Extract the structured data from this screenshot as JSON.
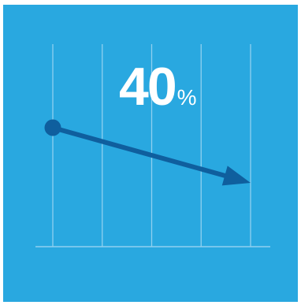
{
  "colors": {
    "background": "#29a8e0",
    "page": "#ffffff",
    "gridline": "#8fd0ef",
    "axis": "#8fd0ef",
    "trend": "#0f5f9e",
    "text": "#ffffff"
  },
  "headline": {
    "value": "40",
    "unit": "%"
  },
  "chart_data": {
    "type": "line",
    "title": "",
    "xlabel": "",
    "ylabel": "",
    "grid": true,
    "x": [
      0,
      4
    ],
    "series": [
      {
        "values": [
          100,
          60
        ],
        "end_marker": "arrow",
        "start_marker": "circle"
      }
    ],
    "annotation": {
      "text": "40%",
      "meaning": "decrease"
    },
    "xlim": [
      0,
      4
    ],
    "ylim": [
      0,
      100
    ]
  }
}
